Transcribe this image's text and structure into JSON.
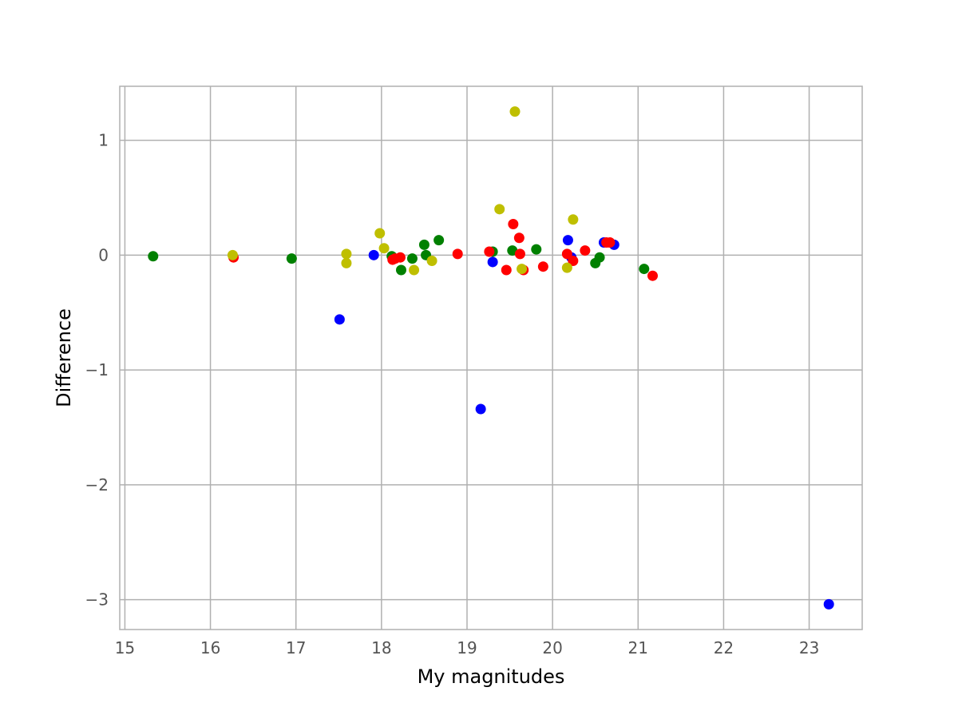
{
  "chart_data": {
    "type": "scatter",
    "title": "",
    "xlabel": "My magnitudes",
    "ylabel": "Difference",
    "xlim": [
      14.94,
      23.62
    ],
    "ylim": [
      -3.26,
      1.47
    ],
    "xticks": [
      15,
      16,
      17,
      18,
      19,
      20,
      21,
      22,
      23
    ],
    "yticks": [
      1,
      0,
      -1,
      -2,
      -3
    ],
    "xtick_labels": [
      "15",
      "16",
      "17",
      "18",
      "19",
      "20",
      "21",
      "22",
      "23"
    ],
    "ytick_labels": [
      "1",
      "0",
      "−1",
      "−2",
      "−3"
    ],
    "grid": true,
    "series": [
      {
        "color": "#0000ff",
        "points": [
          {
            "x": 17.51,
            "y": -0.56
          },
          {
            "x": 17.91,
            "y": 0.0
          },
          {
            "x": 19.16,
            "y": -1.34
          },
          {
            "x": 19.3,
            "y": -0.06
          },
          {
            "x": 20.18,
            "y": 0.13
          },
          {
            "x": 20.22,
            "y": -0.02
          },
          {
            "x": 20.6,
            "y": 0.11
          },
          {
            "x": 20.72,
            "y": 0.09
          },
          {
            "x": 23.23,
            "y": -3.04
          }
        ]
      },
      {
        "color": "#008000",
        "points": [
          {
            "x": 15.33,
            "y": -0.01
          },
          {
            "x": 16.95,
            "y": -0.03
          },
          {
            "x": 18.12,
            "y": -0.01
          },
          {
            "x": 18.23,
            "y": -0.13
          },
          {
            "x": 18.36,
            "y": -0.03
          },
          {
            "x": 18.5,
            "y": 0.09
          },
          {
            "x": 18.52,
            "y": 0.0
          },
          {
            "x": 18.67,
            "y": 0.13
          },
          {
            "x": 19.3,
            "y": 0.03
          },
          {
            "x": 19.53,
            "y": 0.04
          },
          {
            "x": 19.81,
            "y": 0.05
          },
          {
            "x": 20.5,
            "y": -0.07
          },
          {
            "x": 20.55,
            "y": -0.02
          },
          {
            "x": 21.07,
            "y": -0.12
          }
        ]
      },
      {
        "color": "#ff0000",
        "points": [
          {
            "x": 16.27,
            "y": -0.02
          },
          {
            "x": 18.13,
            "y": -0.04
          },
          {
            "x": 18.16,
            "y": -0.03
          },
          {
            "x": 18.22,
            "y": -0.02
          },
          {
            "x": 18.89,
            "y": 0.01
          },
          {
            "x": 19.26,
            "y": 0.03
          },
          {
            "x": 19.46,
            "y": -0.13
          },
          {
            "x": 19.54,
            "y": 0.27
          },
          {
            "x": 19.61,
            "y": 0.15
          },
          {
            "x": 19.62,
            "y": 0.01
          },
          {
            "x": 19.66,
            "y": -0.13
          },
          {
            "x": 19.89,
            "y": -0.1
          },
          {
            "x": 20.17,
            "y": 0.01
          },
          {
            "x": 20.24,
            "y": -0.05
          },
          {
            "x": 20.38,
            "y": 0.04
          },
          {
            "x": 20.63,
            "y": 0.11
          },
          {
            "x": 20.67,
            "y": 0.11
          },
          {
            "x": 21.17,
            "y": -0.18
          }
        ]
      },
      {
        "color": "#bfbf00",
        "points": [
          {
            "x": 16.26,
            "y": 0.0
          },
          {
            "x": 17.59,
            "y": 0.01
          },
          {
            "x": 17.59,
            "y": -0.07
          },
          {
            "x": 17.98,
            "y": 0.19
          },
          {
            "x": 18.03,
            "y": 0.06
          },
          {
            "x": 18.38,
            "y": -0.13
          },
          {
            "x": 18.59,
            "y": -0.05
          },
          {
            "x": 19.38,
            "y": 0.4
          },
          {
            "x": 19.56,
            "y": 1.25
          },
          {
            "x": 19.64,
            "y": -0.12
          },
          {
            "x": 20.17,
            "y": -0.11
          },
          {
            "x": 20.24,
            "y": 0.31
          }
        ]
      }
    ]
  }
}
